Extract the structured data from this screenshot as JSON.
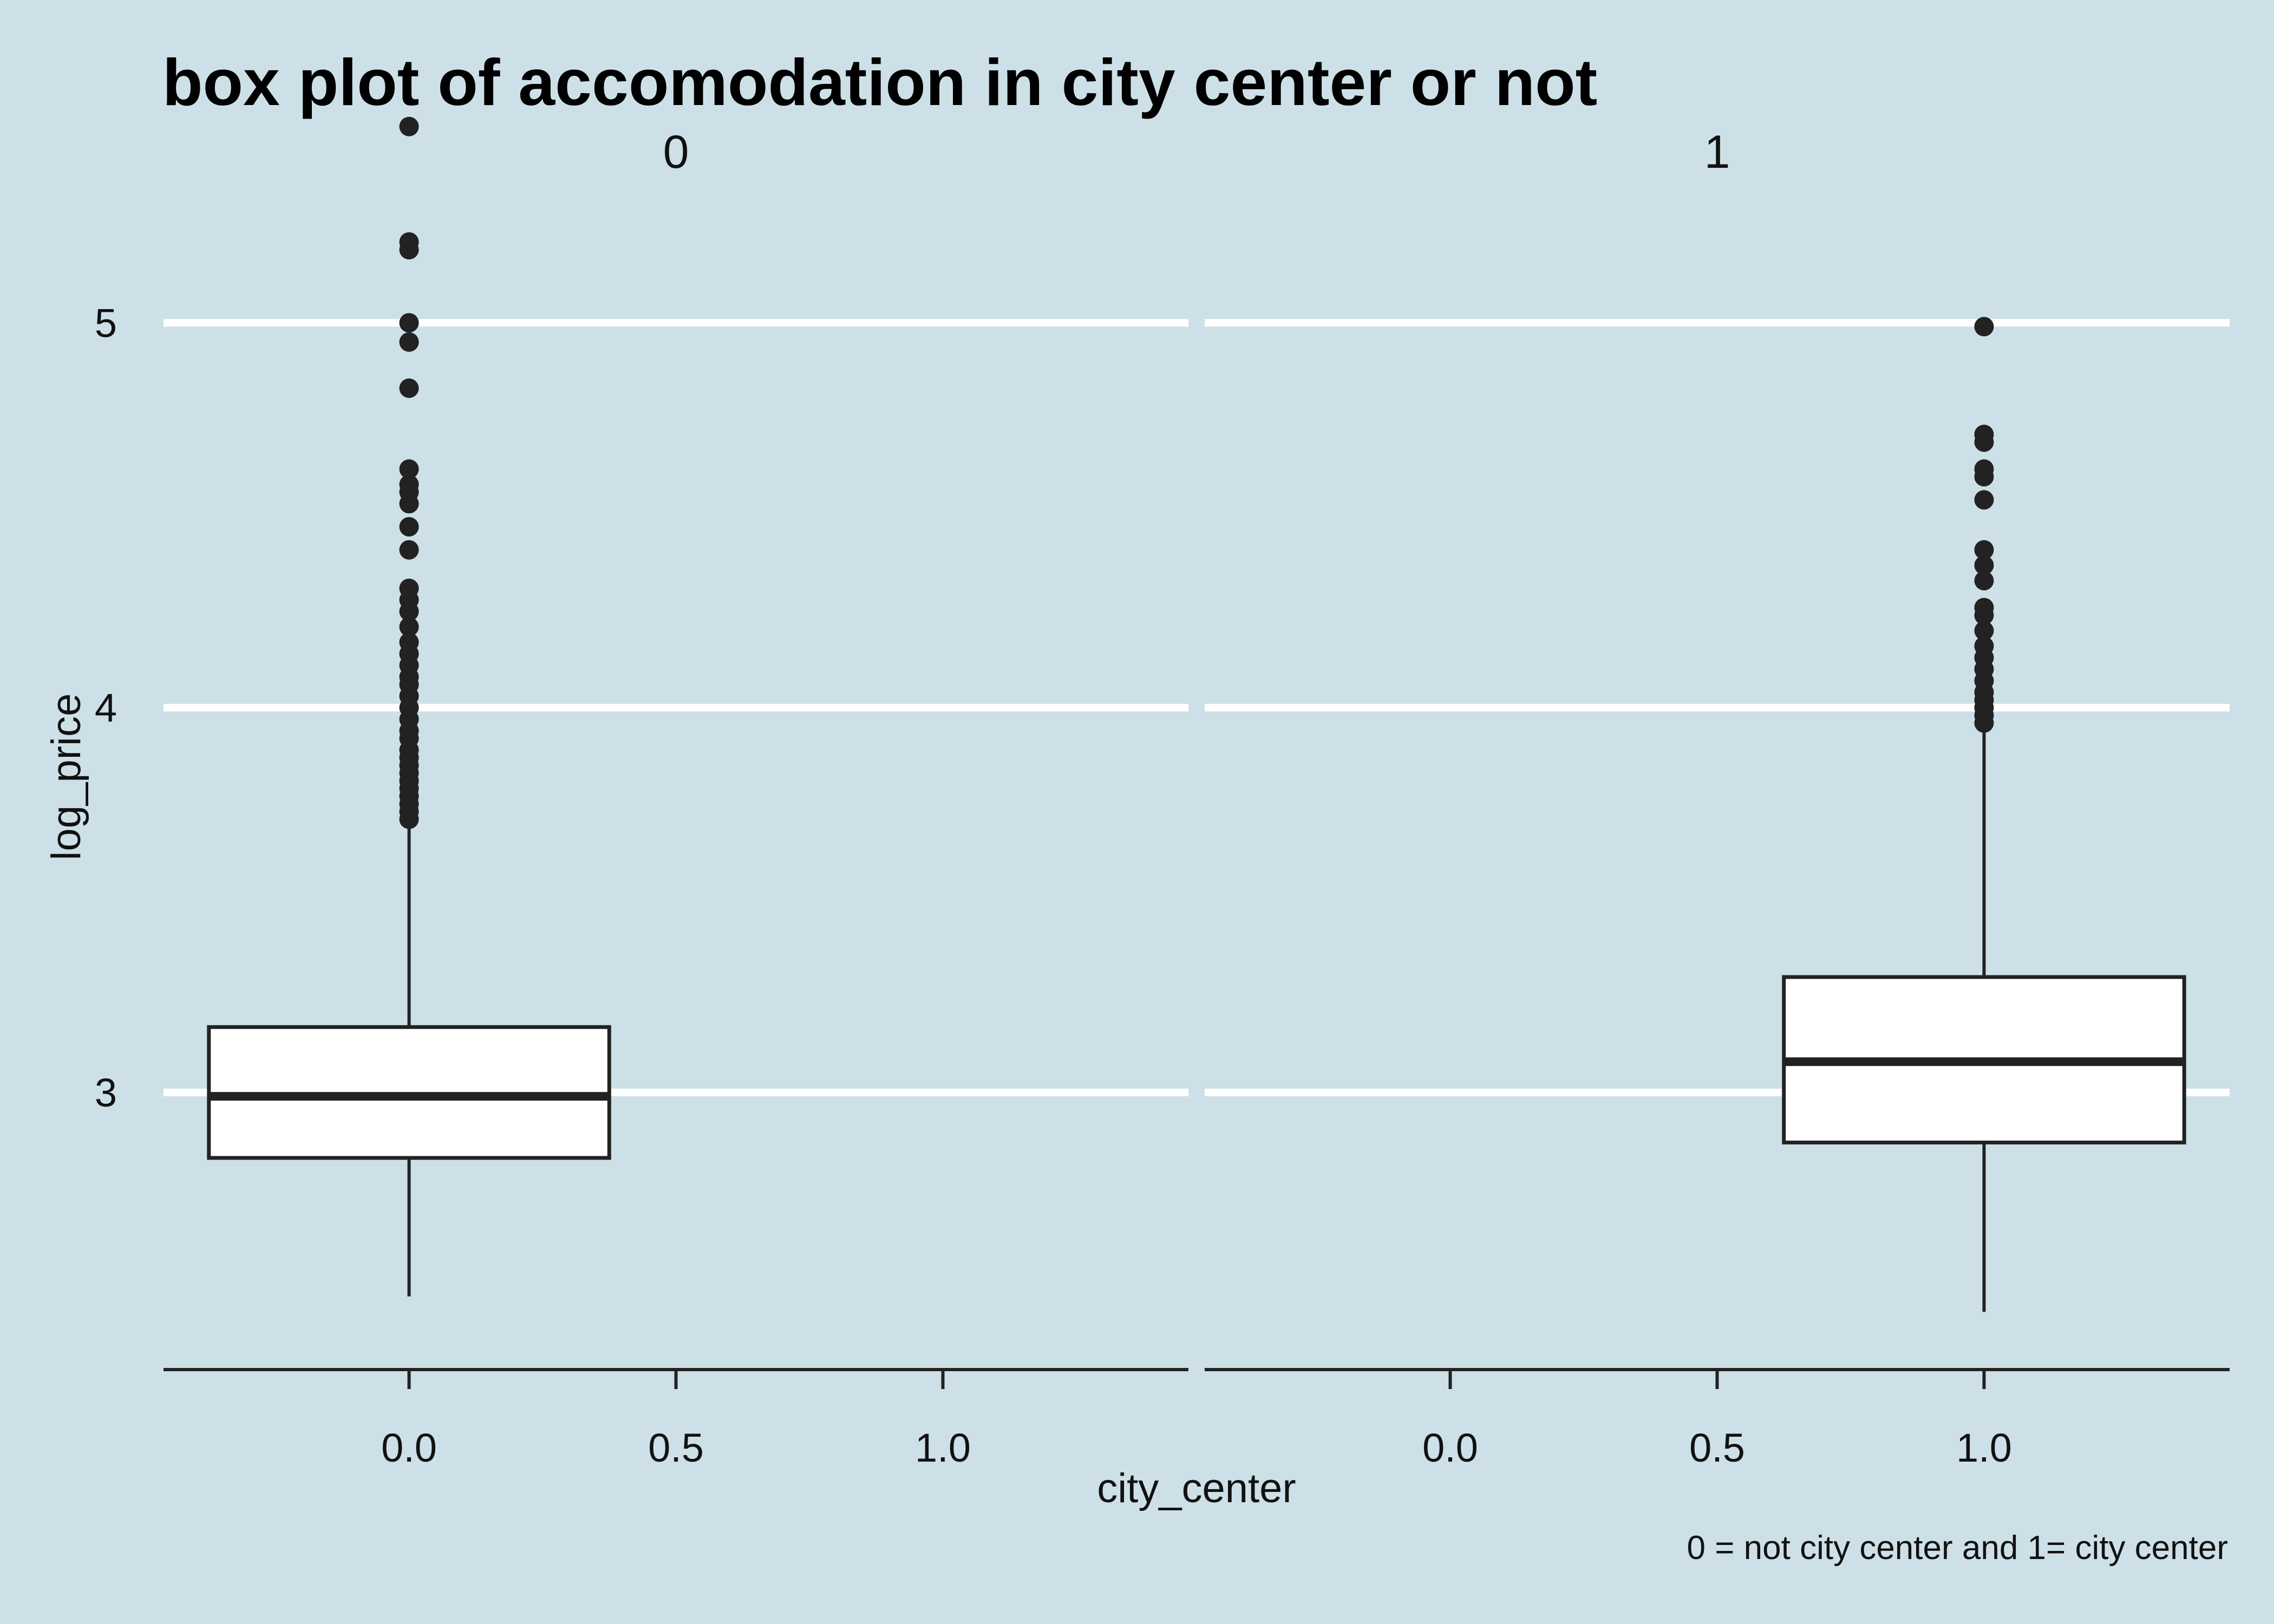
{
  "chart_data": {
    "type": "boxplot",
    "title": "box plot of accomodation in city center or not",
    "caption": "0 = not city center and 1= city center",
    "xlabel": "city_center",
    "ylabel": "log_price",
    "grid": "major horizontal",
    "background_color": "#cde0e8",
    "grid_color": "#ffffff",
    "box_fill": "#ffffff",
    "line_color": "#222222",
    "ylim": [
      2.28,
      5.67
    ],
    "yticks": [
      3,
      4,
      5
    ],
    "yticklabels": [
      "3",
      "4",
      "5"
    ],
    "xlim": [
      -0.46,
      1.46
    ],
    "xticks": [
      0.0,
      0.5,
      1.0
    ],
    "xticklabels": [
      "0.0",
      "0.5",
      "1.0"
    ],
    "panels": [
      {
        "label": "0",
        "x": 0.0,
        "box_width": 0.75,
        "whisker_low": 2.47,
        "q1": 2.83,
        "median": 2.99,
        "q3": 3.17,
        "whisker_high": 3.7,
        "outliers": [
          5.51,
          5.21,
          5.19,
          5.0,
          4.95,
          4.83,
          4.62,
          4.58,
          4.56,
          4.53,
          4.47,
          4.41,
          4.31,
          4.28,
          4.25,
          4.21,
          4.17,
          4.14,
          4.11,
          4.08,
          4.06,
          4.03,
          4.0,
          3.97,
          3.94,
          3.92,
          3.89,
          3.87,
          3.85,
          3.83,
          3.81,
          3.79,
          3.77,
          3.75,
          3.73,
          3.71
        ]
      },
      {
        "label": "1",
        "x": 1.0,
        "box_width": 0.75,
        "whisker_low": 2.43,
        "q1": 2.87,
        "median": 3.08,
        "q3": 3.3,
        "whisker_high": 3.95,
        "outliers": [
          4.99,
          4.71,
          4.69,
          4.62,
          4.6,
          4.54,
          4.41,
          4.37,
          4.33,
          4.26,
          4.24,
          4.2,
          4.16,
          4.13,
          4.1,
          4.07,
          4.04,
          4.02,
          4.0,
          3.98,
          3.96
        ]
      }
    ]
  }
}
